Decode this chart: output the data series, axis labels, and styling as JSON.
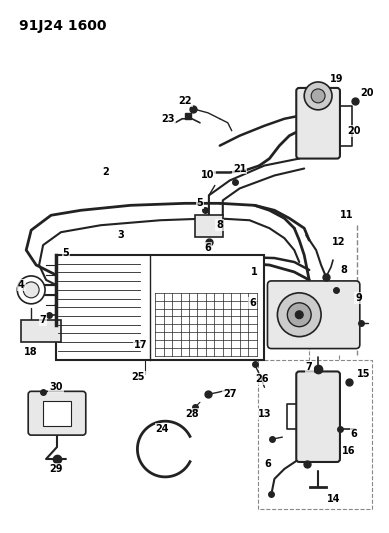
{
  "title": "91J24 1600",
  "bg_color": "#ffffff",
  "line_color": "#222222",
  "gray_fill": "#cccccc",
  "light_gray": "#e8e8e8",
  "dashed_color": "#888888"
}
